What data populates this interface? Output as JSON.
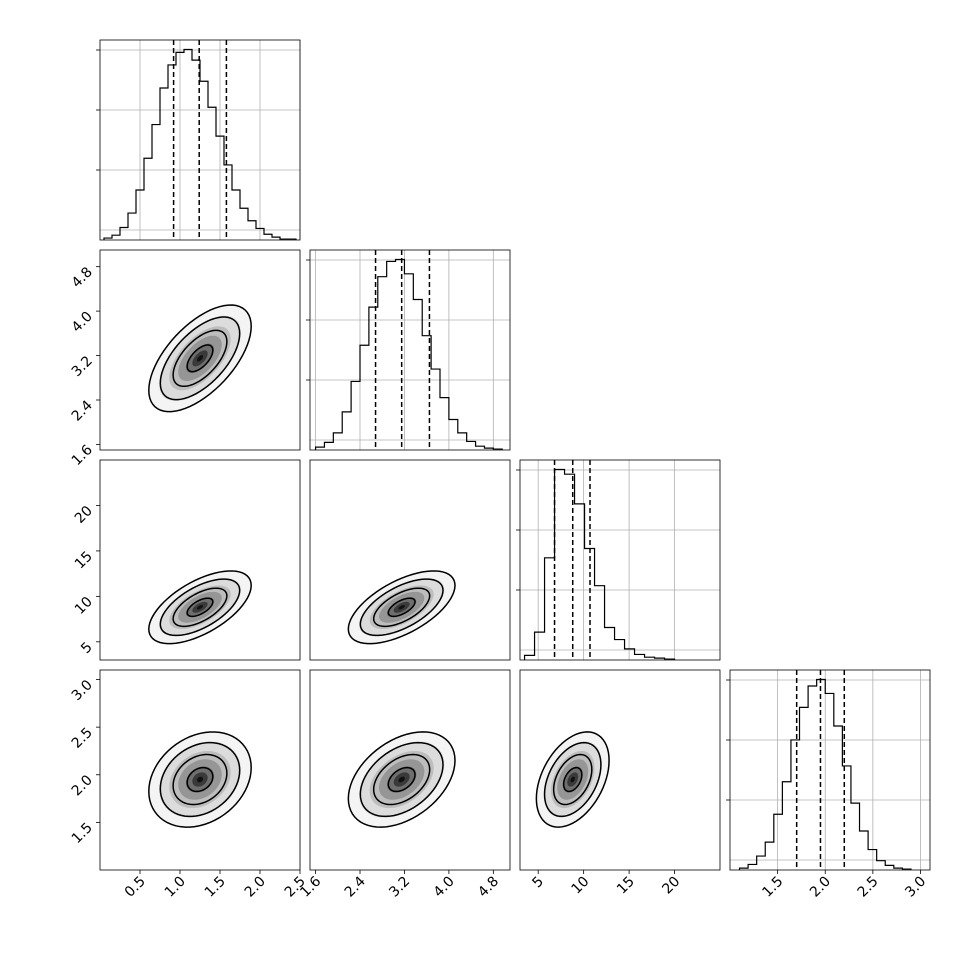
{
  "chart_data": {
    "type": "corner",
    "n_params": 4,
    "grid": true,
    "params": [
      {
        "range": [
          0.0,
          2.5
        ],
        "ticks": [
          0.5,
          1.0,
          1.5,
          2.0,
          2.5
        ],
        "tick_labels": [
          "0.5",
          "1.0",
          "1.5",
          "2.0",
          "2.5"
        ],
        "quantiles": [
          0.92,
          1.24,
          1.58
        ],
        "hist": {
          "edges": [
            0.05,
            0.15,
            0.25,
            0.35,
            0.45,
            0.55,
            0.65,
            0.75,
            0.85,
            0.95,
            1.05,
            1.15,
            1.25,
            1.35,
            1.45,
            1.55,
            1.65,
            1.75,
            1.85,
            1.95,
            2.05,
            2.15,
            2.25,
            2.35,
            2.45
          ],
          "counts": [
            2,
            5,
            13,
            28,
            52,
            85,
            120,
            158,
            182,
            195,
            198,
            187,
            165,
            138,
            108,
            78,
            52,
            33,
            20,
            12,
            6,
            3,
            1,
            1
          ]
        }
      },
      {
        "range": [
          1.5,
          5.1
        ],
        "ticks": [
          1.6,
          2.4,
          3.2,
          4.0,
          4.8
        ],
        "tick_labels": [
          "1.6",
          "2.4",
          "3.2",
          "4.0",
          "4.8"
        ],
        "quantiles": [
          2.68,
          3.15,
          3.65
        ],
        "hist": {
          "edges": [
            1.6,
            1.76,
            1.92,
            2.08,
            2.24,
            2.4,
            2.56,
            2.72,
            2.88,
            3.04,
            3.2,
            3.36,
            3.52,
            3.68,
            3.84,
            4.0,
            4.16,
            4.32,
            4.48,
            4.64,
            4.8,
            4.96
          ],
          "counts": [
            3,
            8,
            18,
            40,
            72,
            110,
            150,
            182,
            198,
            200,
            185,
            158,
            120,
            85,
            55,
            32,
            18,
            9,
            4,
            2,
            1
          ]
        }
      },
      {
        "range": [
          3.0,
          25.0
        ],
        "ticks": [
          5,
          10,
          15,
          20
        ],
        "tick_labels": [
          "5",
          "10",
          "15",
          "20"
        ],
        "quantiles": [
          6.8,
          8.8,
          10.7
        ],
        "hist": {
          "edges": [
            3.5,
            4.6,
            5.7,
            6.8,
            7.9,
            9.0,
            10.1,
            11.2,
            12.3,
            13.4,
            14.5,
            15.6,
            16.7,
            17.8,
            18.9,
            20.0
          ],
          "counts": [
            5,
            30,
            110,
            205,
            200,
            168,
            120,
            80,
            35,
            22,
            12,
            6,
            3,
            2,
            1
          ]
        }
      },
      {
        "range": [
          1.0,
          3.1
        ],
        "ticks": [
          1.5,
          2.0,
          2.5,
          3.0
        ],
        "tick_labels": [
          "1.5",
          "2.0",
          "2.5",
          "3.0"
        ],
        "quantiles": [
          1.7,
          1.95,
          2.2
        ],
        "hist": {
          "edges": [
            1.1,
            1.19,
            1.28,
            1.37,
            1.46,
            1.55,
            1.64,
            1.73,
            1.82,
            1.91,
            2.0,
            2.09,
            2.18,
            2.27,
            2.36,
            2.45,
            2.54,
            2.63,
            2.72,
            2.81,
            2.9
          ],
          "counts": [
            2,
            6,
            15,
            30,
            60,
            95,
            140,
            175,
            198,
            205,
            190,
            155,
            112,
            72,
            42,
            22,
            10,
            5,
            2,
            1
          ]
        }
      }
    ],
    "pairs": [
      {
        "row": 1,
        "col": 0,
        "mean": [
          1.25,
          3.15
        ],
        "sd": [
          0.32,
          0.48
        ],
        "rho": 0.6
      },
      {
        "row": 2,
        "col": 0,
        "mean": [
          1.25,
          8.8
        ],
        "sd": [
          0.32,
          2.0
        ],
        "rho": 0.6
      },
      {
        "row": 2,
        "col": 1,
        "mean": [
          3.15,
          8.8
        ],
        "sd": [
          0.48,
          2.0
        ],
        "rho": 0.6
      },
      {
        "row": 3,
        "col": 0,
        "mean": [
          1.25,
          1.95
        ],
        "sd": [
          0.32,
          0.25
        ],
        "rho": 0.25
      },
      {
        "row": 3,
        "col": 1,
        "mean": [
          3.15,
          1.95
        ],
        "sd": [
          0.48,
          0.25
        ],
        "rho": 0.4
      },
      {
        "row": 3,
        "col": 2,
        "mean": [
          8.8,
          1.95
        ],
        "sd": [
          2.0,
          0.25
        ],
        "rho": 0.4
      }
    ]
  }
}
